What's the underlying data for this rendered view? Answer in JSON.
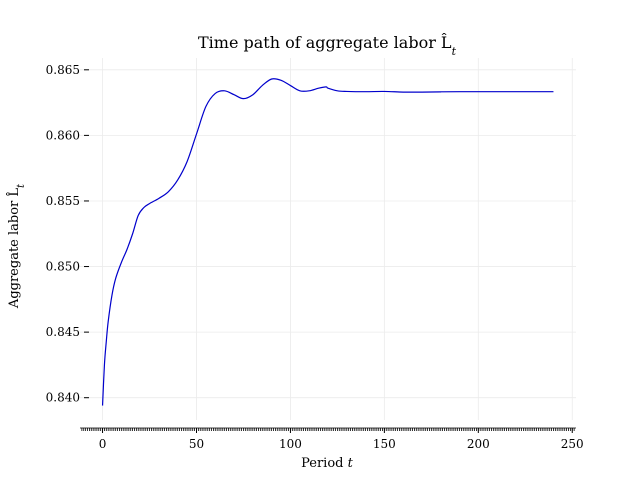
{
  "chart_data": {
    "type": "line",
    "title": "Time path of aggregate labor L̂",
    "title_subscript": "t",
    "xlabel": "Period",
    "xlabel_var": "t",
    "ylabel": "Aggregate labor L̂",
    "ylabel_subscript": "t",
    "xlim": [
      -12,
      252
    ],
    "ylim": [
      0.8383,
      0.8659
    ],
    "x_ticks": [
      0,
      50,
      100,
      150,
      200,
      250
    ],
    "x_tick_labels": [
      "0",
      "50",
      "100",
      "150",
      "200",
      "250"
    ],
    "y_ticks": [
      0.84,
      0.845,
      0.85,
      0.855,
      0.86,
      0.865
    ],
    "y_tick_labels": [
      "0.840",
      "0.845",
      "0.850",
      "0.855",
      "0.860",
      "0.865"
    ],
    "grid": true,
    "line_color": "#0000cc",
    "series": [
      {
        "x": [
          0,
          1,
          2,
          3,
          5,
          7,
          10,
          13,
          16,
          19,
          22,
          25,
          30,
          35,
          40,
          45,
          50,
          55,
          60,
          65,
          70,
          75,
          80,
          85,
          90,
          95,
          100,
          105,
          110,
          115,
          119,
          120,
          125,
          130,
          140,
          150,
          160,
          170,
          180,
          190,
          200,
          210,
          220,
          230,
          240
        ],
        "y": [
          0.8394,
          0.8425,
          0.8443,
          0.8458,
          0.8478,
          0.8491,
          0.8503,
          0.8513,
          0.8525,
          0.8539,
          0.8545,
          0.8548,
          0.8552,
          0.8557,
          0.8566,
          0.858,
          0.8601,
          0.8622,
          0.8632,
          0.8634,
          0.8631,
          0.8628,
          0.8631,
          0.8638,
          0.8643,
          0.8642,
          0.8638,
          0.8634,
          0.8634,
          0.8636,
          0.8637,
          0.8636,
          0.8634,
          0.86335,
          0.86333,
          0.86335,
          0.8633,
          0.8633,
          0.86332,
          0.86333,
          0.86333,
          0.86333,
          0.86333,
          0.86333,
          0.86333
        ]
      }
    ]
  }
}
